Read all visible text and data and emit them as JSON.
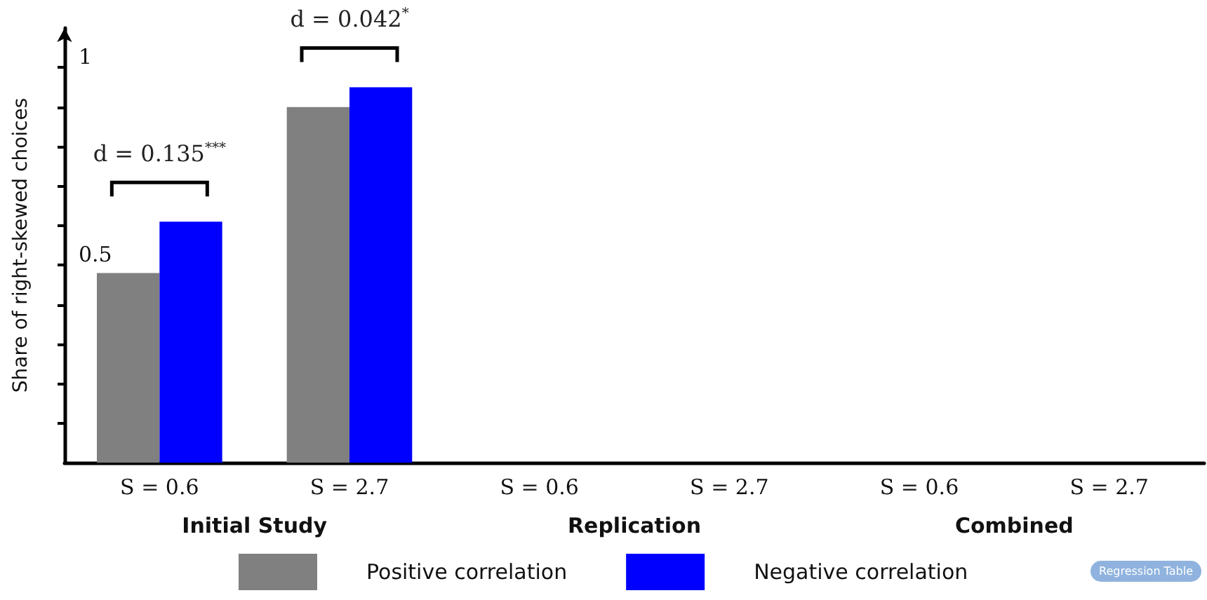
{
  "chart_data": {
    "type": "bar",
    "ylabel": "Share of right-skewed choices",
    "categories": [
      "S = 0.6",
      "S = 2.7",
      "S = 0.6",
      "S = 2.7",
      "S = 0.6",
      "S = 2.7"
    ],
    "series": [
      {
        "name": "Positive correlation",
        "color": "#808080",
        "values": [
          0.48,
          0.9,
          null,
          null,
          null,
          null
        ]
      },
      {
        "name": "Negative correlation",
        "color": "#0000ff",
        "values": [
          0.61,
          0.95,
          null,
          null,
          null,
          null
        ]
      }
    ],
    "ylim": [
      0,
      1.1
    ],
    "yticks": [
      {
        "value": 0.1,
        "label": null
      },
      {
        "value": 0.2,
        "label": null
      },
      {
        "value": 0.3,
        "label": null
      },
      {
        "value": 0.4,
        "label": null
      },
      0.5,
      {
        "value": 0.6,
        "label": null
      },
      {
        "value": 0.7,
        "label": null
      },
      {
        "value": 0.8,
        "label": null
      },
      {
        "value": 0.9,
        "label": null
      },
      1
    ],
    "annotations": [
      "d = 0.135$^{***}$",
      "d = 0.042$^{*}$",
      "Initial Study",
      "Replication",
      "Combined",
      "Regression Table"
    ],
    "grid": false,
    "legend": "bottom"
  }
}
